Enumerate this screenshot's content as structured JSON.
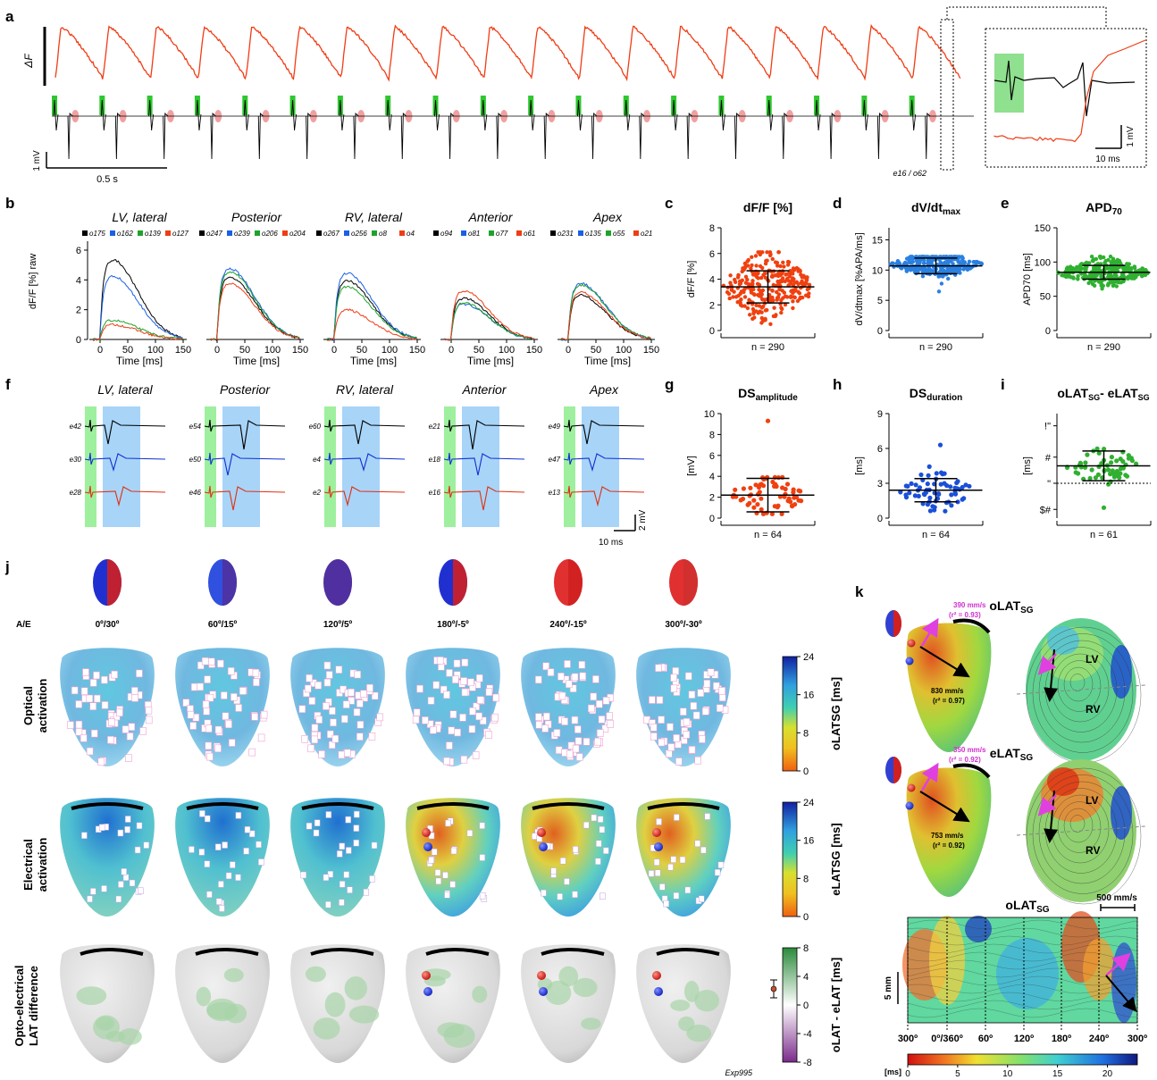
{
  "panel_labels": [
    "a",
    "b",
    "c",
    "d",
    "e",
    "f",
    "g",
    "h",
    "i",
    "j",
    "k"
  ],
  "a": {
    "y_label": "ΔF",
    "mv_label": "1 mV",
    "time_label": "0.5 s",
    "electrode_label": "e16 / o62",
    "inset_time": "10 ms",
    "inset_mv": "1 mV"
  },
  "b": {
    "regions": [
      {
        "title": "LV, lateral",
        "legend": [
          "o175",
          "o162",
          "o139",
          "o127"
        ]
      },
      {
        "title": "Posterior",
        "legend": [
          "o247",
          "o239",
          "o206",
          "o204"
        ]
      },
      {
        "title": "RV, lateral",
        "legend": [
          "o267",
          "o256",
          "o8",
          "o4"
        ]
      },
      {
        "title": "Anterior",
        "legend": [
          "o94",
          "o81",
          "o77",
          "o61"
        ]
      },
      {
        "title": "Apex",
        "legend": [
          "o231",
          "o135",
          "o55",
          "o21"
        ]
      }
    ],
    "legend_colors": [
      "#000000",
      "#1a5fe6",
      "#1ea32a",
      "#f03c14"
    ],
    "y_label": "dF/F [%] raw",
    "x_label": "Time [ms]",
    "x_ticks": [
      "0",
      "50",
      "100",
      "150"
    ],
    "y_ticks": [
      "0",
      "2",
      "4",
      "6"
    ]
  },
  "c": {
    "title": "dF/F [%]",
    "y_label": "dF/F [%]",
    "n": "n = 290",
    "ticks": [
      "0",
      "2",
      "4",
      "6",
      "8"
    ]
  },
  "d": {
    "title": "dV/dt",
    "title_sub": "max",
    "y_label": "dV/dtmax [%APA/ms]",
    "n": "n = 290",
    "ticks": [
      "0",
      "5",
      "10",
      "15"
    ]
  },
  "e": {
    "title": "APD",
    "title_sub": "70",
    "y_label": "APD70 [ms]",
    "n": "n = 290",
    "ticks": [
      "0",
      "50",
      "100",
      "150"
    ]
  },
  "f": {
    "regions": [
      {
        "title": "LV, lateral",
        "electrodes": [
          "e42",
          "e30",
          "e28"
        ]
      },
      {
        "title": "Posterior",
        "electrodes": [
          "e54",
          "e50",
          "e46"
        ]
      },
      {
        "title": "RV, lateral",
        "electrodes": [
          "e60",
          "e4",
          "e2"
        ]
      },
      {
        "title": "Anterior",
        "electrodes": [
          "e21",
          "e18",
          "e16"
        ]
      },
      {
        "title": "Apex",
        "electrodes": [
          "e49",
          "e47",
          "e13"
        ]
      }
    ],
    "scale_time": "10 ms",
    "scale_mv": "2 mV"
  },
  "g": {
    "title": "DS",
    "title_sub": "amplitude",
    "y_label": "[mV]",
    "n": "n = 64",
    "ticks": [
      "0",
      "2",
      "4",
      "6",
      "8",
      "10"
    ]
  },
  "h": {
    "title": "DS",
    "title_sub": "duration",
    "y_label": "[ms]",
    "n": "n = 64",
    "ticks": [
      "0",
      "3",
      "6",
      "9"
    ]
  },
  "i": {
    "title_part1": "oLAT",
    "sub1": "SG",
    "title_part2": "- eLAT",
    "sub2": "SG",
    "y_label": "[ms]",
    "n": "n = 61",
    "ticks": [
      "$#",
      "\"",
      "#",
      "!\""
    ]
  },
  "j": {
    "ae_label": "A/E",
    "angles": [
      "0º/30º",
      "60º/15º",
      "120º/5º",
      "180º/-5º",
      "240º/-15º",
      "300º/-30º"
    ],
    "row_labels": [
      [
        "Optical",
        "activation"
      ],
      [
        "Electrical",
        "activation"
      ],
      [
        "Opto-electrical",
        "LAT difference"
      ]
    ],
    "cbar1": {
      "label": "oLATSG [ms]",
      "ticks": [
        "24",
        "16",
        "8",
        "0"
      ]
    },
    "cbar2": {
      "label": "eLATSG [ms]",
      "ticks": [
        "24",
        "16",
        "8",
        "0"
      ]
    },
    "cbar3": {
      "label": "oLAT - eLAT [ms]",
      "ticks": [
        "8",
        "4",
        "0",
        "-4",
        "-8"
      ]
    },
    "exp_label": "Exp995"
  },
  "k": {
    "title1": "oLAT",
    "title1_sub": "SG",
    "title2": "eLAT",
    "title2_sub": "SG",
    "title3": "oLAT",
    "title3_sub": "SG",
    "v1_magenta": "390 mm/s",
    "v1_magenta_r": "(r² = 0.93)",
    "v1_black": "830 mm/s",
    "v1_black_r": "(r² = 0.97)",
    "v2_magenta": "350 mm/s",
    "v2_magenta_r": "(r² = 0.92)",
    "v2_black": "753 mm/s",
    "v2_black_r": "(r² = 0.92)",
    "lv": "LV",
    "rv": "RV",
    "scale_velocity": "500 mm/s",
    "scale_mm": "5 mm",
    "angle_ticks": [
      "300º",
      "0º/360º",
      "60º",
      "120º",
      "180º",
      "240º",
      "300º"
    ],
    "cbar_unit": "[ms]",
    "cbar_ticks": [
      "0",
      "5",
      "10",
      "15",
      "20"
    ]
  }
}
